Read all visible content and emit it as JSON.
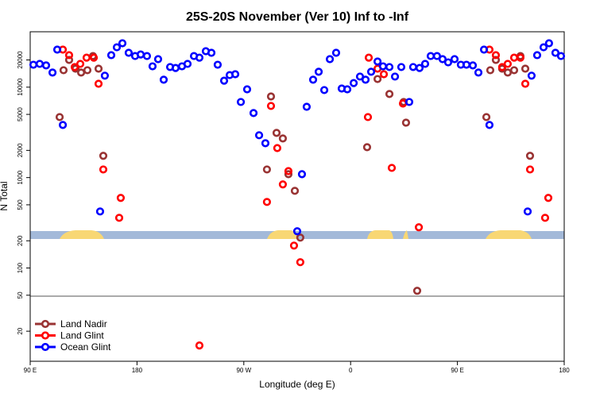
{
  "chart_data": {
    "type": "scatter",
    "title": "25S-20S November (Ver 10)   Inf to -Inf",
    "xlabel": "Longitude (deg E)",
    "ylabel": "N Total",
    "xlim": [
      90,
      540
    ],
    "xticks": [
      {
        "value": 90,
        "label": "90 E"
      },
      {
        "value": 180,
        "label": "180"
      },
      {
        "value": 270,
        "label": "90 W"
      },
      {
        "value": 360,
        "label": "0"
      },
      {
        "value": 450,
        "label": "90 E"
      },
      {
        "value": 540,
        "label": "180"
      }
    ],
    "ylim": [
      9.3,
      41000
    ],
    "ylog": true,
    "yticks": [
      20,
      50,
      100,
      200,
      500,
      1000,
      2000,
      5000,
      10000,
      20000
    ],
    "legend": "lower left",
    "series": [
      {
        "name": "Land Nadir",
        "color": "#993333",
        "x": [
          114.8,
          118.1,
          122.8,
          128.2,
          132.9,
          138.2,
          142.9,
          147.6,
          151.6,
          289.5,
          292.9,
          297.6,
          302.9,
          307.6,
          313.0,
          317.6,
          416.1,
          373.9,
          382.7,
          392.7,
          404.7,
          406.7,
          474.4,
          477.7,
          482.4,
          487.7,
          492.4,
          497.8,
          503.1,
          507.2,
          511.2
        ],
        "values": [
          4670,
          15400,
          20000,
          16000,
          14500,
          15400,
          22100,
          16000,
          1740,
          1230,
          7890,
          3120,
          2710,
          1090,
          714,
          217,
          56,
          2170,
          12300,
          8400,
          6860,
          4050,
          4670,
          15400,
          20000,
          16000,
          14500,
          15400,
          22100,
          16000,
          1740
        ]
      },
      {
        "name": "Land Glint",
        "color": "#ff0000",
        "x": [
          117.5,
          122.8,
          127.5,
          132.2,
          137.5,
          143.6,
          147.6,
          151.6,
          165.0,
          166.3,
          232.6,
          289.5,
          292.9,
          298.2,
          302.9,
          307.6,
          312.3,
          317.6,
          375.3,
          382.7,
          374.6,
          388.0,
          394.7,
          404.1,
          417.5,
          477.0,
          482.4,
          487.7,
          492.4,
          497.8,
          503.1,
          507.2,
          511.2,
          523.9,
          526.6
        ],
        "values": [
          26000,
          22600,
          16700,
          18100,
          21200,
          21200,
          10900,
          1230,
          359,
          596,
          13.9,
          538,
          6200,
          2120,
          840,
          1180,
          177,
          116,
          21200,
          16000,
          4670,
          13900,
          1280,
          6590,
          282,
          26000,
          22600,
          16700,
          18100,
          21200,
          21200,
          10900,
          1230,
          359,
          596
        ]
      },
      {
        "name": "Ocean Glint",
        "color": "#0000ff",
        "x": [
          92.7,
          98.0,
          103.4,
          108.8,
          112.8,
          117.5,
          148.9,
          152.9,
          158.3,
          163.0,
          167.7,
          173.0,
          178.4,
          183.1,
          188.4,
          193.1,
          197.8,
          202.5,
          207.9,
          212.5,
          217.9,
          222.6,
          228.0,
          232.6,
          238.0,
          242.7,
          248.0,
          253.4,
          258.1,
          262.8,
          267.5,
          272.8,
          278.2,
          282.9,
          288.2,
          315.0,
          319.0,
          323.0,
          328.4,
          333.1,
          337.8,
          342.5,
          347.8,
          352.5,
          357.2,
          362.6,
          367.9,
          372.6,
          377.3,
          382.7,
          387.3,
          392.7,
          397.4,
          402.7,
          409.4,
          412.7,
          418.1,
          422.8,
          427.5,
          432.8,
          437.5,
          442.2,
          447.6,
          452.9,
          457.6,
          463.0,
          467.7,
          472.4,
          477.0,
          509.2,
          512.5,
          517.2,
          522.6,
          527.2,
          532.6,
          537.3
        ],
        "values": [
          17700,
          18100,
          17400,
          14500,
          26000,
          3820,
          422,
          13400,
          22600,
          27600,
          30600,
          24000,
          22100,
          23000,
          22100,
          17000,
          20400,
          12100,
          16700,
          16300,
          17000,
          18100,
          22100,
          21200,
          25000,
          24000,
          17700,
          11800,
          13600,
          13900,
          6860,
          9460,
          5170,
          2940,
          2400,
          255,
          1090,
          6070,
          12100,
          14800,
          9290,
          20400,
          24000,
          9660,
          9460,
          11100,
          13100,
          12100,
          14800,
          19200,
          17000,
          16700,
          13100,
          16700,
          6860,
          16700,
          16300,
          18100,
          22100,
          22100,
          20400,
          18800,
          20400,
          17700,
          17700,
          17400,
          14500,
          26000,
          3820,
          422,
          13400,
          22600,
          27600,
          30600,
          24000,
          22100
        ]
      }
    ]
  }
}
